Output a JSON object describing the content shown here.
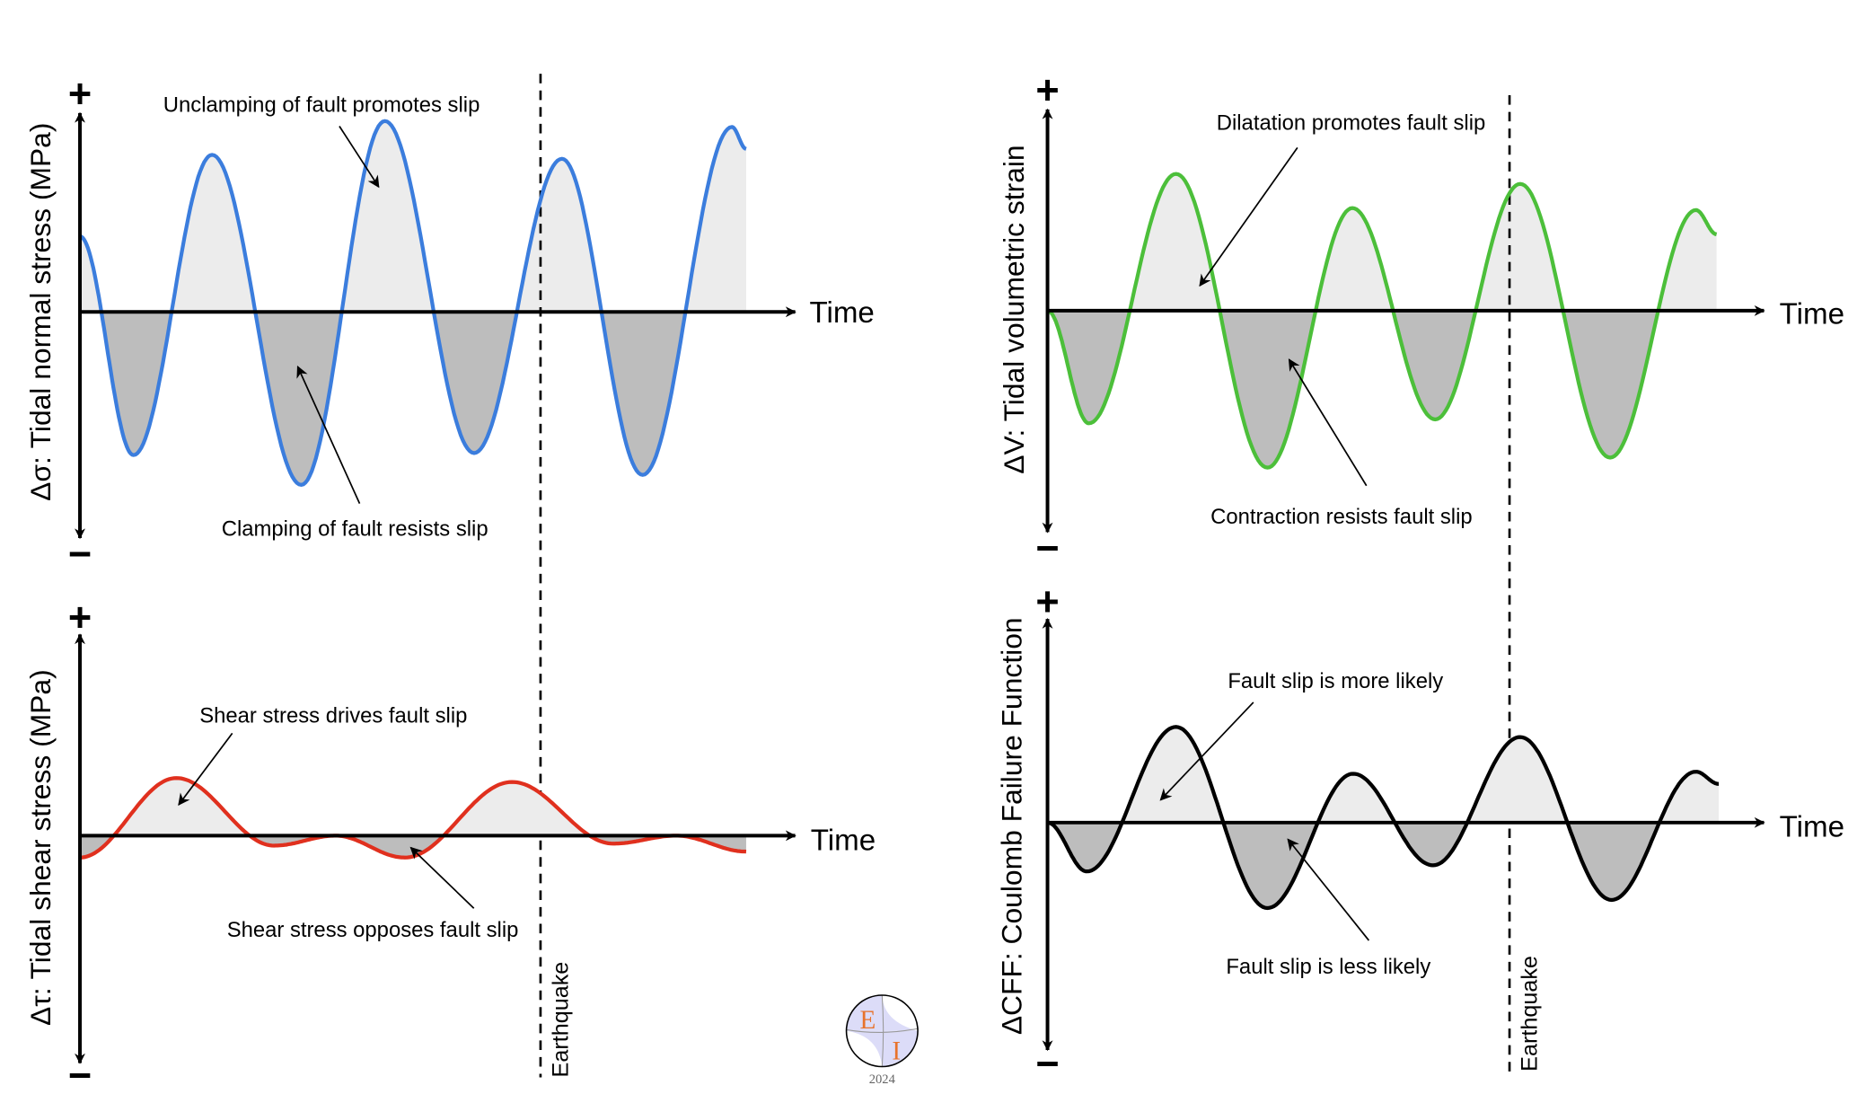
{
  "colors": {
    "normal": "#3b7ddd",
    "volumetric": "#4cbf3a",
    "shear": "#e0301e",
    "cff": "#000000",
    "positive_fill": "#ececec",
    "negative_fill": "#bdbdbd",
    "logo_letters": "#e8732c",
    "logo_fill": "#dcdcf8"
  },
  "chart_data": [
    {
      "id": "normal",
      "type": "area",
      "ylabel": "Δσ: Tidal normal stress  (MPa)",
      "xlabel": "Time",
      "plus": "+",
      "minus": "−",
      "earthquake_t": 0.645,
      "points": {
        "t": [
          0,
          0.075,
          0.185,
          0.31,
          0.427,
          0.552,
          0.675,
          0.788,
          0.913,
          0.933
        ],
        "v": [
          0.38,
          -0.72,
          0.79,
          -0.87,
          0.96,
          -0.71,
          0.77,
          -0.82,
          0.93,
          0.82
        ]
      },
      "annotations": [
        "Unclamping of fault promotes slip",
        "Clamping of fault resists slip"
      ]
    },
    {
      "id": "shear",
      "type": "area",
      "ylabel": "Δτ: Tidal shear stress (MPa)",
      "xlabel": "Time",
      "plus": "+",
      "minus": "−",
      "earthquake_t": 0.645,
      "earthquake_label": "Earthquake",
      "points": {
        "t": [
          0,
          0.135,
          0.272,
          0.358,
          0.455,
          0.605,
          0.747,
          0.835,
          0.933
        ],
        "v": [
          -0.11,
          0.29,
          -0.05,
          0.0,
          -0.11,
          0.27,
          -0.04,
          0.0,
          -0.08
        ]
      },
      "annotations": [
        "Shear stress drives fault slip",
        "Shear stress opposes fault slip"
      ]
    },
    {
      "id": "volumetric",
      "type": "area",
      "ylabel": "ΔV: Tidal volumetric strain",
      "xlabel": "Time",
      "plus": "+",
      "minus": "−",
      "earthquake_t": 0.647,
      "points": {
        "t": [
          0,
          0.058,
          0.18,
          0.308,
          0.427,
          0.543,
          0.662,
          0.788,
          0.908,
          0.937
        ],
        "v": [
          0,
          -0.56,
          0.68,
          -0.78,
          0.51,
          -0.54,
          0.63,
          -0.73,
          0.5,
          0.38
        ]
      },
      "annotations": [
        "Dilatation promotes fault slip",
        "Contraction resists fault slip"
      ]
    },
    {
      "id": "cff",
      "type": "area",
      "ylabel": "ΔCFF: Coulomb Failure Function",
      "xlabel": "Time",
      "plus": "+",
      "minus": "−",
      "earthquake_t": 0.647,
      "earthquake_label": "Earthquake",
      "points": {
        "t": [
          0,
          0.055,
          0.18,
          0.308,
          0.428,
          0.54,
          0.662,
          0.79,
          0.908,
          0.94
        ],
        "v": [
          0,
          -0.24,
          0.47,
          -0.42,
          0.24,
          -0.21,
          0.42,
          -0.38,
          0.25,
          0.19
        ]
      },
      "annotations": [
        "Fault slip is more likely",
        "Fault slip is less likely"
      ]
    }
  ],
  "logo": {
    "letter1": "E",
    "letter2": "I",
    "year": "2024"
  }
}
